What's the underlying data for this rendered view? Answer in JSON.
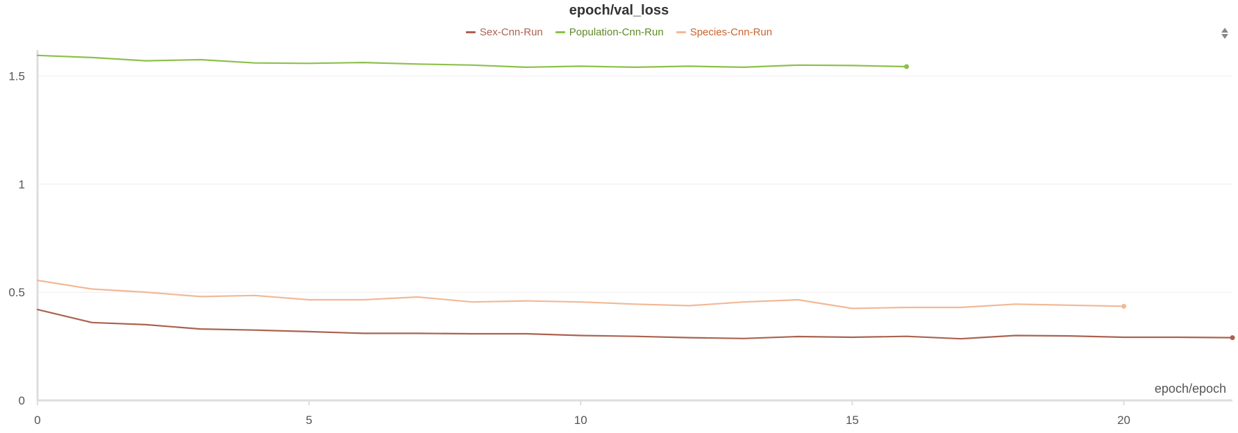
{
  "chart_data": {
    "type": "line",
    "title": "epoch/val_loss",
    "xlabel": "epoch/epoch",
    "ylabel": "",
    "xlim": [
      0,
      22
    ],
    "ylim": [
      0,
      1.62
    ],
    "xticks": [
      0,
      5,
      10,
      15,
      20
    ],
    "yticks": [
      0,
      0.5,
      1,
      1.5
    ],
    "xtick_labels": [
      "0",
      "5",
      "10",
      "15",
      "20"
    ],
    "ytick_labels": [
      "0",
      "0.5",
      "1",
      "1.5"
    ],
    "grid": "horizontal",
    "legend_position": "top-center",
    "series": [
      {
        "name": "Sex-Cnn-Run",
        "color": "#a9634f",
        "x": [
          0,
          1,
          2,
          3,
          4,
          5,
          6,
          7,
          8,
          9,
          10,
          11,
          12,
          13,
          14,
          15,
          16,
          17,
          18,
          19,
          20,
          21,
          22
        ],
        "values": [
          0.42,
          0.36,
          0.35,
          0.33,
          0.325,
          0.318,
          0.31,
          0.31,
          0.308,
          0.308,
          0.3,
          0.296,
          0.29,
          0.286,
          0.295,
          0.292,
          0.296,
          0.285,
          0.3,
          0.298,
          0.292,
          0.292,
          0.29
        ]
      },
      {
        "name": "Population-Cnn-Run",
        "color": "#8cc04b",
        "x": [
          0,
          1,
          2,
          3,
          4,
          5,
          6,
          7,
          8,
          9,
          10,
          11,
          12,
          13,
          14,
          15,
          16
        ],
        "values": [
          1.595,
          1.585,
          1.57,
          1.575,
          1.56,
          1.558,
          1.562,
          1.555,
          1.55,
          1.54,
          1.545,
          1.54,
          1.545,
          1.54,
          1.55,
          1.548,
          1.543
        ]
      },
      {
        "name": "Species-Cnn-Run",
        "color": "#f2b896",
        "x": [
          0,
          1,
          2,
          3,
          4,
          5,
          6,
          7,
          8,
          9,
          10,
          11,
          12,
          13,
          14,
          15,
          16,
          17,
          18,
          19,
          20
        ],
        "values": [
          0.555,
          0.515,
          0.5,
          0.48,
          0.485,
          0.465,
          0.465,
          0.478,
          0.455,
          0.46,
          0.455,
          0.445,
          0.438,
          0.455,
          0.465,
          0.425,
          0.43,
          0.43,
          0.445,
          0.44,
          0.435
        ]
      }
    ]
  },
  "ui": {
    "scroll_icon": "up-down-arrows-icon",
    "legend_text_colors": [
      "#a9634f",
      "#5e8a26",
      "#c8642e"
    ]
  }
}
